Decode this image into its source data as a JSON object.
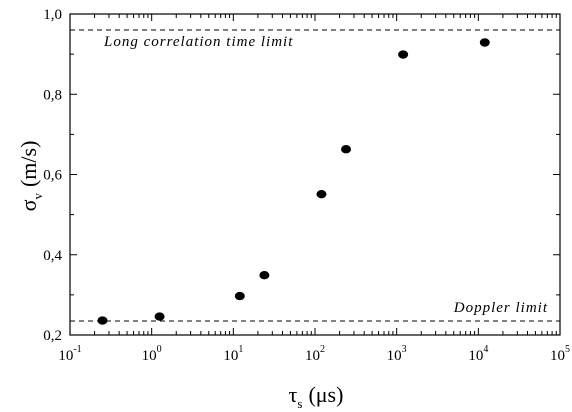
{
  "chart_data": {
    "type": "scatter",
    "title": "",
    "xlabel": {
      "symbol": "τ",
      "subscript": "s",
      "unit": "(μs)"
    },
    "ylabel": {
      "symbol": "σ",
      "subscript": "v",
      "unit": "(m/s)"
    },
    "x_scale": "log",
    "xlim": [
      0.1,
      100000
    ],
    "ylim": [
      0.2,
      1.0
    ],
    "x_ticks": [
      {
        "value": 0.1,
        "base": "10",
        "exp": "-1"
      },
      {
        "value": 1,
        "base": "10",
        "exp": "0"
      },
      {
        "value": 10,
        "base": "10",
        "exp": "1"
      },
      {
        "value": 100,
        "base": "10",
        "exp": "2"
      },
      {
        "value": 1000,
        "base": "10",
        "exp": "3"
      },
      {
        "value": 10000,
        "base": "10",
        "exp": "4"
      },
      {
        "value": 100000,
        "base": "10",
        "exp": "5"
      }
    ],
    "y_ticks": [
      {
        "value": 0.2,
        "label": "0,2"
      },
      {
        "value": 0.4,
        "label": "0,4"
      },
      {
        "value": 0.6,
        "label": "0,6"
      },
      {
        "value": 0.8,
        "label": "0,8"
      },
      {
        "value": 1.0,
        "label": "1,0"
      }
    ],
    "points": [
      {
        "x": 0.25,
        "y": 0.236
      },
      {
        "x": 1.25,
        "y": 0.246
      },
      {
        "x": 12,
        "y": 0.297
      },
      {
        "x": 24,
        "y": 0.349
      },
      {
        "x": 120,
        "y": 0.551
      },
      {
        "x": 240,
        "y": 0.663
      },
      {
        "x": 1200,
        "y": 0.899
      },
      {
        "x": 12000,
        "y": 0.929
      }
    ],
    "reference_lines": [
      {
        "y": 0.96,
        "label": "Long correlation time limit",
        "style": "dashed"
      },
      {
        "y": 0.235,
        "label": "Doppler limit",
        "style": "dashed"
      }
    ],
    "grid": false,
    "legend": "none",
    "marker_color": "#000000"
  }
}
